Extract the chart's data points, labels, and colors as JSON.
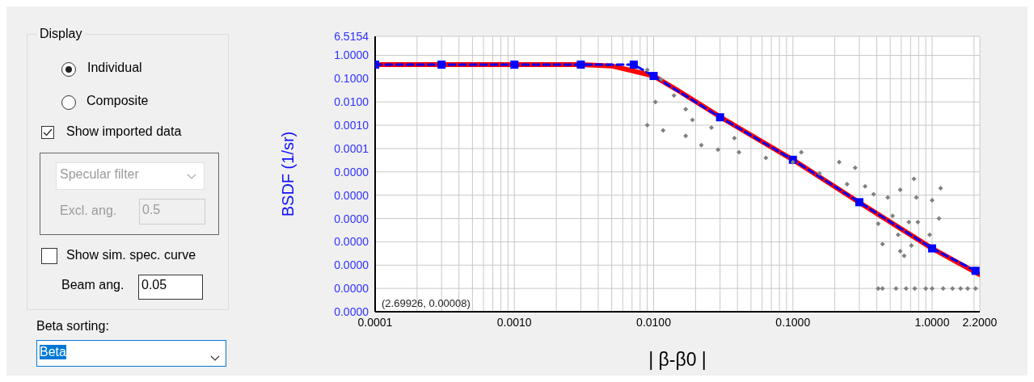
{
  "chart_data": {
    "type": "line",
    "xlabel": "| β-β0 |",
    "ylabel": "BSDF  (1/sr)",
    "log": "xy",
    "grid": true,
    "xlim": [
      0.0001,
      2.2
    ],
    "ylim": [
      1e-11,
      6.5154
    ],
    "xticks": [
      {
        "value": 0.0001,
        "label": "0.0001"
      },
      {
        "value": 0.0002,
        "label": null
      },
      {
        "value": 0.0003,
        "label": null
      },
      {
        "value": 0.0004,
        "label": null
      },
      {
        "value": 0.0005,
        "label": null
      },
      {
        "value": 0.0006,
        "label": null
      },
      {
        "value": 0.0007,
        "label": null
      },
      {
        "value": 0.0008,
        "label": null
      },
      {
        "value": 0.0009,
        "label": null
      },
      {
        "value": 0.001,
        "label": "0.0010"
      },
      {
        "value": 0.002,
        "label": null
      },
      {
        "value": 0.003,
        "label": null
      },
      {
        "value": 0.004,
        "label": null
      },
      {
        "value": 0.005,
        "label": null
      },
      {
        "value": 0.006,
        "label": null
      },
      {
        "value": 0.007,
        "label": null
      },
      {
        "value": 0.008,
        "label": null
      },
      {
        "value": 0.009,
        "label": null
      },
      {
        "value": 0.01,
        "label": "0.0100"
      },
      {
        "value": 0.02,
        "label": null
      },
      {
        "value": 0.03,
        "label": null
      },
      {
        "value": 0.04,
        "label": null
      },
      {
        "value": 0.05,
        "label": null
      },
      {
        "value": 0.06,
        "label": null
      },
      {
        "value": 0.07,
        "label": null
      },
      {
        "value": 0.08,
        "label": null
      },
      {
        "value": 0.09,
        "label": null
      },
      {
        "value": 0.1,
        "label": "0.1000"
      },
      {
        "value": 0.2,
        "label": null
      },
      {
        "value": 0.3,
        "label": null
      },
      {
        "value": 0.4,
        "label": null
      },
      {
        "value": 0.5,
        "label": null
      },
      {
        "value": 0.6,
        "label": null
      },
      {
        "value": 0.7,
        "label": null
      },
      {
        "value": 0.8,
        "label": null
      },
      {
        "value": 0.9,
        "label": null
      },
      {
        "value": 1,
        "label": "1.0000"
      },
      {
        "value": 2,
        "label": null
      },
      {
        "value": 2.2,
        "label": "2.2000"
      }
    ],
    "yticks": [
      {
        "value": 1e-11,
        "label": "0.0000"
      },
      {
        "value": 1e-10,
        "label": "0.0000"
      },
      {
        "value": 1e-09,
        "label": "0.0000"
      },
      {
        "value": 1e-08,
        "label": "0.0000"
      },
      {
        "value": 1e-07,
        "label": "0.0000"
      },
      {
        "value": 1e-06,
        "label": "0.0000"
      },
      {
        "value": 1e-05,
        "label": "0.0000"
      },
      {
        "value": 0.0001,
        "label": "0.0001"
      },
      {
        "value": 0.001,
        "label": "0.0010"
      },
      {
        "value": 0.01,
        "label": "0.0100"
      },
      {
        "value": 0.1,
        "label": "0.1000"
      },
      {
        "value": 1,
        "label": "1.0000"
      },
      {
        "value": 6.5154,
        "label": "6.5154"
      }
    ],
    "series": [
      {
        "color": "#ff0000",
        "marker": "none",
        "line_style": "solid",
        "x": [
          0.0001,
          0.001,
          0.003,
          0.005,
          0.007,
          0.01,
          0.0147,
          0.0316,
          0.1,
          0.316,
          1,
          2.2
        ],
        "values": [
          0.4,
          0.4,
          0.4,
          0.35,
          0.22,
          0.13,
          0.033,
          0.0019,
          3.3e-05,
          4e-07,
          5.2e-09,
          3.9e-10
        ]
      },
      {
        "color": "#0000ff",
        "marker": "square",
        "line_style": "dashed",
        "x": [
          0.0001,
          0.0003,
          0.001,
          0.003,
          0.0072,
          0.01,
          0.03,
          0.1,
          0.3,
          1,
          2.05
        ],
        "values": [
          0.4,
          0.4,
          0.4,
          0.4,
          0.4,
          0.13,
          0.0022,
          3.3e-05,
          5e-07,
          5.2e-09,
          5.7e-10
        ]
      },
      {
        "type": "scatter",
        "color": "#808080",
        "marker": "diamond",
        "x": [
          0.009,
          0.0103,
          0.0117,
          0.017,
          0.022,
          0.029,
          0.041,
          0.064,
          0.019,
          0.026,
          0.038,
          0.017,
          0.009,
          0.0113,
          0.014,
          0.1,
          0.115,
          0.155,
          0.215,
          0.245,
          0.28,
          0.33,
          0.38,
          0.48,
          0.59,
          0.74,
          0.77,
          1.15,
          1.12,
          1.0,
          0.41,
          0.44,
          0.59,
          0.63,
          0.57,
          0.71,
          0.96,
          0.79,
          0.68,
          0.52,
          0.41,
          0.44,
          0.55,
          0.65,
          0.75,
          0.9,
          1.0,
          1.2,
          1.4,
          1.6,
          1.8,
          2.05
        ],
        "values": [
          0.001,
          0.01,
          0.0006,
          0.00035,
          0.00014,
          9e-05,
          7e-05,
          4e-05,
          0.0017,
          0.0008,
          0.00028,
          0.0049,
          0.24,
          0.093,
          0.019,
          2.6e-05,
          7e-05,
          8.5e-06,
          2.6e-05,
          3e-06,
          1.5e-05,
          2.4e-06,
          1.1e-06,
          8e-07,
          1.7e-06,
          5e-06,
          8e-07,
          2e-06,
          1e-07,
          6e-07,
          6e-08,
          8e-09,
          4e-09,
          2.5e-09,
          2e-08,
          7e-09,
          2e-08,
          7e-08,
          7e-08,
          1.3e-07,
          1e-10,
          1e-10,
          1e-10,
          1e-10,
          1e-10,
          1e-10,
          1e-10,
          1e-10,
          1e-10,
          1e-10,
          1e-10,
          1e-10
        ]
      }
    ],
    "annotations": [
      "(2.69926, 0.00008)",
      "Display",
      "Individual",
      "Composite",
      "Show imported data",
      "Specular filter",
      "Excl. ang.",
      "0.5",
      "Show sim. spec. curve",
      "Beam ang.",
      "0.05",
      "Beta sorting:",
      "Beta"
    ]
  }
}
